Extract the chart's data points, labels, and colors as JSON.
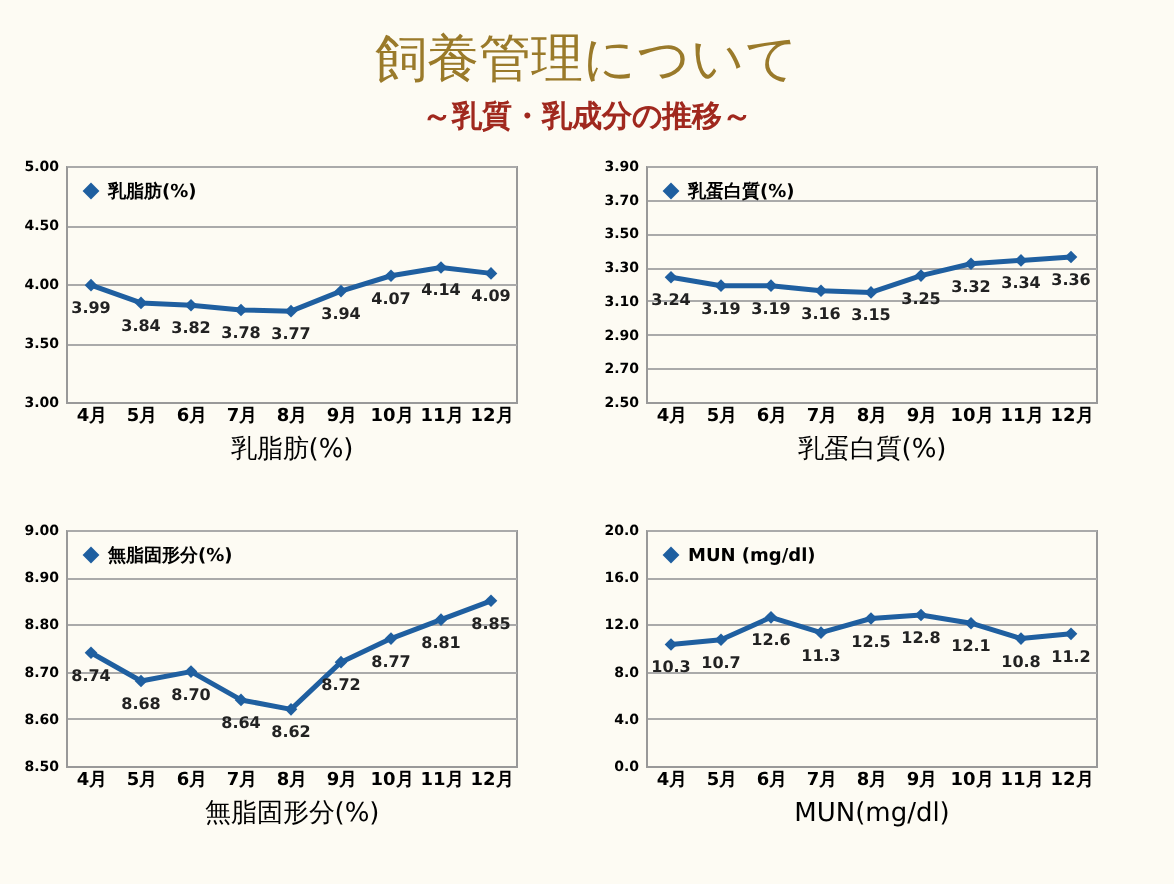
{
  "chart_data": [
    {
      "type": "line",
      "title": "飼養管理について",
      "subtitle": "～乳質・乳成分の推移～",
      "xlabel": "乳脂肪(%)",
      "categories": [
        "4月",
        "5月",
        "6月",
        "7月",
        "8月",
        "9月",
        "10月",
        "11月",
        "12月"
      ],
      "series": [
        {
          "name": "乳脂肪(%)",
          "color": "#1f5fa0",
          "values": [
            3.99,
            3.84,
            3.82,
            3.78,
            3.77,
            3.94,
            4.07,
            4.14,
            4.09
          ],
          "value_labels": [
            "3.99",
            "3.84",
            "3.82",
            "3.78",
            "3.77",
            "3.94",
            "4.07",
            "4.14",
            "4.09"
          ]
        }
      ],
      "ylim": [
        3,
        5
      ],
      "yticks": [
        {
          "value": 3,
          "label": "3.00"
        },
        {
          "value": 3.5,
          "label": "3.50"
        },
        {
          "value": 4,
          "label": "4.00"
        },
        {
          "value": 4.5,
          "label": "4.50"
        },
        {
          "value": 5,
          "label": "5.00"
        }
      ],
      "grid": "y",
      "legend": "top left",
      "marker": "diamond",
      "line_style": "solid"
    },
    {
      "type": "line",
      "xlabel": "乳蛋白質(%)",
      "categories": [
        "4月",
        "5月",
        "6月",
        "7月",
        "8月",
        "9月",
        "10月",
        "11月",
        "12月"
      ],
      "series": [
        {
          "name": "乳蛋白質(%)",
          "color": "#1f5fa0",
          "values": [
            3.24,
            3.19,
            3.19,
            3.16,
            3.15,
            3.25,
            3.32,
            3.34,
            3.36
          ],
          "value_labels": [
            "3.24",
            "3.19",
            "3.19",
            "3.16",
            "3.15",
            "3.25",
            "3.32",
            "3.34",
            "3.36"
          ]
        }
      ],
      "ylim": [
        2.5,
        3.9
      ],
      "yticks": [
        {
          "value": 2.5,
          "label": "2.50"
        },
        {
          "value": 2.7,
          "label": "2.70"
        },
        {
          "value": 2.9,
          "label": "2.90"
        },
        {
          "value": 3.1,
          "label": "3.10"
        },
        {
          "value": 3.3,
          "label": "3.30"
        },
        {
          "value": 3.5,
          "label": "3.50"
        },
        {
          "value": 3.7,
          "label": "3.70"
        },
        {
          "value": 3.9,
          "label": "3.90"
        }
      ],
      "grid": "y",
      "legend": "top left",
      "marker": "diamond",
      "line_style": "solid"
    },
    {
      "type": "line",
      "xlabel": "無脂固形分(%)",
      "categories": [
        "4月",
        "5月",
        "6月",
        "7月",
        "8月",
        "9月",
        "10月",
        "11月",
        "12月"
      ],
      "series": [
        {
          "name": "無脂固形分(%)",
          "color": "#1f5fa0",
          "values": [
            8.74,
            8.68,
            8.7,
            8.64,
            8.62,
            8.72,
            8.77,
            8.81,
            8.85
          ],
          "value_labels": [
            "8.74",
            "8.68",
            "8.70",
            "8.64",
            "8.62",
            "8.72",
            "8.77",
            "8.81",
            "8.85"
          ]
        }
      ],
      "ylim": [
        8.5,
        9
      ],
      "yticks": [
        {
          "value": 8.5,
          "label": "8.50"
        },
        {
          "value": 8.6,
          "label": "8.60"
        },
        {
          "value": 8.7,
          "label": "8.70"
        },
        {
          "value": 8.8,
          "label": "8.80"
        },
        {
          "value": 8.9,
          "label": "8.90"
        },
        {
          "value": 9,
          "label": "9.00"
        }
      ],
      "grid": "y",
      "legend": "top left",
      "marker": "diamond",
      "line_style": "solid"
    },
    {
      "type": "line",
      "xlabel": "MUN(mg/dl)",
      "categories": [
        "4月",
        "5月",
        "6月",
        "7月",
        "8月",
        "9月",
        "10月",
        "11月",
        "12月"
      ],
      "series": [
        {
          "name": "MUN (mg/dl)",
          "color": "#1f5fa0",
          "values": [
            10.3,
            10.7,
            12.6,
            11.3,
            12.5,
            12.8,
            12.1,
            10.8,
            11.2
          ],
          "value_labels": [
            "10.3",
            "10.7",
            "12.6",
            "11.3",
            "12.5",
            "12.8",
            "12.1",
            "10.8",
            "11.2"
          ]
        }
      ],
      "ylim": [
        0,
        20
      ],
      "yticks": [
        {
          "value": 0,
          "label": "0.0"
        },
        {
          "value": 4,
          "label": "4.0"
        },
        {
          "value": 8,
          "label": "8.0"
        },
        {
          "value": 12,
          "label": "12.0"
        },
        {
          "value": 16,
          "label": "16.0"
        },
        {
          "value": 20,
          "label": "20.0"
        }
      ],
      "grid": "y",
      "legend": "top left",
      "marker": "diamond",
      "line_style": "solid"
    }
  ]
}
